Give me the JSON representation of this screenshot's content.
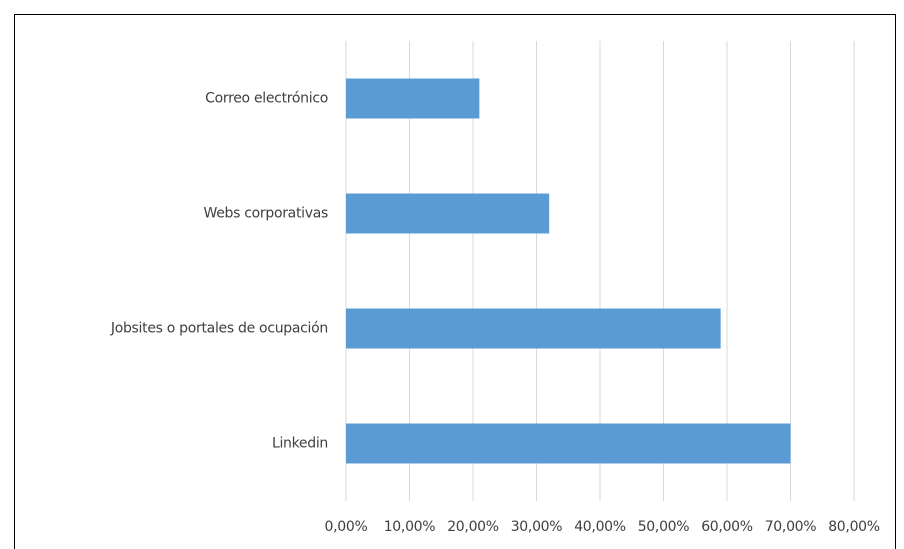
{
  "chart_data": {
    "type": "bar",
    "orientation": "horizontal",
    "categories": [
      "Correo electrónico",
      "Webs corporativas",
      "Jobsites o portales de ocupación",
      "Linkedin"
    ],
    "values": [
      21,
      32,
      59,
      70
    ],
    "color": "#5b9bd5",
    "xlim": [
      0,
      80
    ],
    "xticks": [
      {
        "value": 0,
        "label": "0,00%"
      },
      {
        "value": 10,
        "label": "10,00%"
      },
      {
        "value": 20,
        "label": "20,00%"
      },
      {
        "value": 30,
        "label": "30,00%"
      },
      {
        "value": 40,
        "label": "40,00%"
      },
      {
        "value": 50,
        "label": "50,00%"
      },
      {
        "value": 60,
        "label": "60,00%"
      },
      {
        "value": 70,
        "label": "70,00%"
      },
      {
        "value": 80,
        "label": "80,00%"
      }
    ],
    "grid": true
  }
}
